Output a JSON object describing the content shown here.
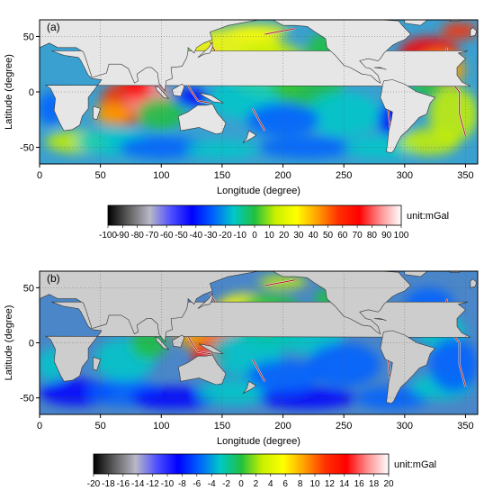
{
  "panels": [
    {
      "label": "(a)",
      "xlabel": "Longitude (degree)",
      "ylabel": "Latitude (degree)",
      "x_ticks": [
        0,
        50,
        100,
        150,
        200,
        250,
        300,
        350
      ],
      "y_ticks": [
        50,
        0,
        -50
      ],
      "xlim": [
        0,
        360
      ],
      "ylim": [
        -65,
        65
      ],
      "colorbar": {
        "ticks": [
          -100,
          -90,
          -80,
          -70,
          -60,
          -50,
          -40,
          -30,
          -20,
          -10,
          0,
          10,
          20,
          30,
          40,
          50,
          60,
          70,
          80,
          90,
          100
        ],
        "unit": "unit:mGal"
      }
    },
    {
      "label": "(b)",
      "xlabel": "Longitude (degree)",
      "ylabel": "Latitude (degree)",
      "x_ticks": [
        0,
        50,
        100,
        150,
        200,
        250,
        300,
        350
      ],
      "y_ticks": [
        50,
        0,
        -50
      ],
      "xlim": [
        0,
        360
      ],
      "ylim": [
        -65,
        65
      ],
      "colorbar": {
        "ticks": [
          -20,
          -18,
          -16,
          -14,
          -12,
          -10,
          -8,
          -6,
          -4,
          -2,
          0,
          2,
          4,
          6,
          8,
          10,
          12,
          14,
          16,
          18,
          20
        ],
        "unit": "unit:mGal"
      }
    }
  ],
  "colors": {
    "land": "#e6e6e6",
    "land_b": "#cdcdcd",
    "colormap": [
      "#000000",
      "#606060",
      "#b8b8c8",
      "#5050ff",
      "#0000ff",
      "#0060ff",
      "#00c8c8",
      "#20c040",
      "#c8f000",
      "#ffff00",
      "#ffa000",
      "#ff3000",
      "#ff0000",
      "#ff9090",
      "#ffffff"
    ]
  }
}
